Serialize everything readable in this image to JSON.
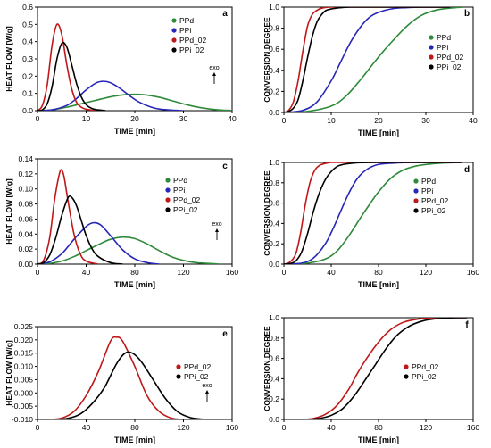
{
  "colors": {
    "PPd": "#2e8b3a",
    "PPi": "#2626b8",
    "PPd_02": "#c01818",
    "PPi_02": "#000000"
  },
  "chart_data": [
    {
      "panel_label": "a",
      "type": "line",
      "xlabel": "TIME [min]",
      "ylabel": "HEAT FLOW [W/g]",
      "xlim": [
        0,
        40
      ],
      "ylim": [
        0,
        0.6
      ],
      "xticks": [
        "0",
        "10",
        "20",
        "30",
        "40"
      ],
      "yticks": [
        "0.0",
        "0.1",
        "0.2",
        "0.3",
        "0.4",
        "0.5",
        "0.6"
      ],
      "legend": [
        "PPd",
        "PPi",
        "PPd_02",
        "PPi_02"
      ],
      "legend_position": "top-right",
      "annotation": "exo",
      "series": [
        {
          "name": "PPd",
          "x": [
            0,
            3,
            6,
            9,
            12,
            15,
            18,
            20,
            22,
            25,
            28,
            31,
            34,
            37,
            40
          ],
          "y": [
            0,
            0.005,
            0.02,
            0.04,
            0.06,
            0.08,
            0.093,
            0.095,
            0.092,
            0.078,
            0.055,
            0.032,
            0.015,
            0.005,
            0.001
          ]
        },
        {
          "name": "PPi",
          "x": [
            0,
            3,
            6,
            8,
            10,
            12,
            13.5,
            15,
            17,
            19,
            21,
            24,
            27,
            30
          ],
          "y": [
            0,
            0.005,
            0.03,
            0.07,
            0.12,
            0.16,
            0.17,
            0.162,
            0.128,
            0.085,
            0.048,
            0.015,
            0.004,
            0
          ]
        },
        {
          "name": "PPd_02",
          "x": [
            0,
            1,
            2,
            3,
            4,
            5,
            6,
            7,
            8,
            9,
            10,
            12
          ],
          "y": [
            0,
            0.03,
            0.15,
            0.38,
            0.5,
            0.44,
            0.27,
            0.13,
            0.05,
            0.02,
            0.008,
            0
          ]
        },
        {
          "name": "PPi_02",
          "x": [
            0,
            1,
            2,
            3,
            4,
            5,
            6,
            7,
            8,
            9,
            10,
            11,
            12,
            14
          ],
          "y": [
            0,
            0.005,
            0.04,
            0.14,
            0.3,
            0.39,
            0.37,
            0.27,
            0.16,
            0.08,
            0.035,
            0.015,
            0.006,
            0
          ]
        }
      ]
    },
    {
      "panel_label": "b",
      "type": "line",
      "xlabel": "TIME [min]",
      "ylabel": "CONVERSION DEGREE",
      "xlim": [
        0,
        40
      ],
      "ylim": [
        0,
        1.0
      ],
      "xticks": [
        "0",
        "10",
        "20",
        "30",
        "40"
      ],
      "yticks": [
        "0.0",
        "0.2",
        "0.4",
        "0.6",
        "0.8",
        "1.0"
      ],
      "legend": [
        "PPd",
        "PPi",
        "PPd_02",
        "PPi_02"
      ],
      "legend_position": "right",
      "series": [
        {
          "name": "PPd",
          "x": [
            0,
            5,
            10,
            13,
            16,
            19,
            21,
            23,
            26,
            29,
            32,
            35,
            38
          ],
          "y": [
            0,
            0.01,
            0.06,
            0.15,
            0.3,
            0.47,
            0.58,
            0.68,
            0.82,
            0.92,
            0.97,
            0.99,
            1.0
          ]
        },
        {
          "name": "PPi",
          "x": [
            0,
            4,
            7,
            10,
            12,
            14,
            16,
            18,
            20,
            23,
            26,
            30,
            35
          ],
          "y": [
            0,
            0.02,
            0.1,
            0.3,
            0.48,
            0.66,
            0.8,
            0.9,
            0.95,
            0.985,
            0.995,
            1.0,
            1.0
          ]
        },
        {
          "name": "PPd_02",
          "x": [
            0,
            1,
            2,
            3,
            4,
            5,
            6,
            7,
            8,
            10,
            15,
            20,
            35
          ],
          "y": [
            0,
            0.02,
            0.1,
            0.3,
            0.58,
            0.82,
            0.93,
            0.97,
            0.99,
            1.0,
            1.0,
            1.0,
            1.0
          ]
        },
        {
          "name": "PPi_02",
          "x": [
            0,
            1,
            2,
            3,
            4,
            5,
            6,
            7,
            8,
            9,
            11,
            14,
            20,
            35
          ],
          "y": [
            0,
            0.01,
            0.04,
            0.12,
            0.3,
            0.52,
            0.72,
            0.86,
            0.93,
            0.97,
            0.99,
            1.0,
            1.0,
            1.0
          ]
        }
      ]
    },
    {
      "panel_label": "c",
      "type": "line",
      "xlabel": "TIME [min]",
      "ylabel": "HEAT FLOW [W/g]",
      "xlim": [
        0,
        160
      ],
      "ylim": [
        0,
        0.14
      ],
      "xticks": [
        "0",
        "40",
        "80",
        "120",
        "160"
      ],
      "yticks": [
        "0.00",
        "0.02",
        "0.04",
        "0.06",
        "0.08",
        "0.10",
        "0.12",
        "0.14"
      ],
      "legend": [
        "PPd",
        "PPi",
        "PPd_02",
        "PPi_02"
      ],
      "legend_position": "top-right",
      "annotation": "exo",
      "series": [
        {
          "name": "PPd",
          "x": [
            0,
            10,
            20,
            30,
            40,
            50,
            60,
            70,
            80,
            90,
            100,
            110,
            120,
            130,
            140,
            150
          ],
          "y": [
            0,
            0.001,
            0.004,
            0.01,
            0.018,
            0.026,
            0.033,
            0.036,
            0.034,
            0.027,
            0.018,
            0.01,
            0.005,
            0.002,
            0.001,
            0
          ]
        },
        {
          "name": "PPi",
          "x": [
            0,
            10,
            20,
            30,
            40,
            46,
            52,
            60,
            70,
            80,
            90,
            100
          ],
          "y": [
            0,
            0.003,
            0.014,
            0.033,
            0.05,
            0.055,
            0.052,
            0.038,
            0.019,
            0.007,
            0.002,
            0
          ]
        },
        {
          "name": "PPd_02",
          "x": [
            0,
            5,
            10,
            14,
            18,
            20,
            22,
            25,
            30,
            35,
            40,
            50
          ],
          "y": [
            0,
            0.005,
            0.035,
            0.085,
            0.12,
            0.125,
            0.115,
            0.085,
            0.04,
            0.014,
            0.004,
            0
          ]
        },
        {
          "name": "PPi_02",
          "x": [
            0,
            5,
            10,
            15,
            20,
            25,
            28,
            32,
            36,
            40,
            45,
            50,
            60,
            70
          ],
          "y": [
            0,
            0.002,
            0.012,
            0.035,
            0.065,
            0.088,
            0.089,
            0.078,
            0.058,
            0.038,
            0.02,
            0.01,
            0.002,
            0
          ]
        }
      ]
    },
    {
      "panel_label": "d",
      "type": "line",
      "xlabel": "TIME [min]",
      "ylabel": "CONVERSION DEGREE",
      "xlim": [
        0,
        160
      ],
      "ylim": [
        0,
        1.0
      ],
      "xticks": [
        "0",
        "40",
        "80",
        "120",
        "160"
      ],
      "yticks": [
        "0.0",
        "0.2",
        "0.4",
        "0.6",
        "0.8",
        "1.0"
      ],
      "legend": [
        "PPd",
        "PPi",
        "PPd_02",
        "PPi_02"
      ],
      "legend_position": "right",
      "series": [
        {
          "name": "PPd",
          "x": [
            0,
            20,
            35,
            45,
            55,
            65,
            72,
            80,
            90,
            100,
            110,
            120,
            135,
            150
          ],
          "y": [
            0,
            0.01,
            0.05,
            0.13,
            0.28,
            0.46,
            0.58,
            0.71,
            0.84,
            0.92,
            0.96,
            0.98,
            0.995,
            1.0
          ]
        },
        {
          "name": "PPi",
          "x": [
            0,
            15,
            25,
            35,
            42,
            48,
            55,
            62,
            70,
            80,
            95,
            110,
            150
          ],
          "y": [
            0,
            0.01,
            0.06,
            0.2,
            0.36,
            0.52,
            0.7,
            0.84,
            0.93,
            0.98,
            0.995,
            1.0,
            1.0
          ]
        },
        {
          "name": "PPd_02",
          "x": [
            0,
            5,
            10,
            14,
            18,
            22,
            26,
            30,
            35,
            40,
            50,
            80,
            150
          ],
          "y": [
            0,
            0.02,
            0.1,
            0.3,
            0.58,
            0.8,
            0.92,
            0.97,
            0.99,
            1.0,
            1.0,
            1.0,
            1.0
          ]
        },
        {
          "name": "PPi_02",
          "x": [
            0,
            5,
            10,
            15,
            20,
            25,
            30,
            35,
            40,
            45,
            50,
            60,
            80,
            150
          ],
          "y": [
            0,
            0.005,
            0.03,
            0.12,
            0.3,
            0.52,
            0.7,
            0.83,
            0.91,
            0.96,
            0.98,
            0.995,
            1.0,
            1.0
          ]
        }
      ]
    },
    {
      "panel_label": "e",
      "type": "line",
      "xlabel": "TIME [min]",
      "ylabel": "HEAT FLOW [W/g]",
      "xlim": [
        0,
        160
      ],
      "ylim": [
        -0.01,
        0.025
      ],
      "xticks": [
        "0",
        "40",
        "80",
        "120",
        "160"
      ],
      "yticks": [
        "-0.010",
        "-0.005",
        "0.000",
        "0.005",
        "0.010",
        "0.015",
        "0.020",
        "0.025"
      ],
      "legend": [
        "PPd_02",
        "PPi_02"
      ],
      "legend_position": "right",
      "annotation": "exo",
      "series": [
        {
          "name": "PPd_02",
          "x": [
            10,
            20,
            30,
            40,
            50,
            60,
            65,
            70,
            80,
            90,
            100,
            110,
            120,
            125
          ],
          "y": [
            -0.01,
            -0.0095,
            -0.007,
            -0.001,
            0.008,
            0.0195,
            0.021,
            0.0195,
            0.01,
            -0.001,
            -0.007,
            -0.0095,
            -0.01,
            -0.01
          ]
        },
        {
          "name": "PPi_02",
          "x": [
            15,
            25,
            35,
            45,
            55,
            65,
            72,
            78,
            85,
            95,
            105,
            115,
            125,
            135,
            145
          ],
          "y": [
            -0.01,
            -0.0096,
            -0.008,
            -0.004,
            0.002,
            0.011,
            0.015,
            0.015,
            0.012,
            0.005,
            -0.002,
            -0.007,
            -0.0092,
            -0.0099,
            -0.01
          ]
        }
      ]
    },
    {
      "panel_label": "f",
      "type": "line",
      "xlabel": "TIME [min]",
      "ylabel": "CONVERSION DEGREE",
      "xlim": [
        0,
        160
      ],
      "ylim": [
        0,
        1.0
      ],
      "xticks": [
        "0",
        "40",
        "80",
        "120",
        "160"
      ],
      "yticks": [
        "0.0",
        "0.2",
        "0.4",
        "0.6",
        "0.8",
        "1.0"
      ],
      "legend": [
        "PPd_02",
        "PPi_02"
      ],
      "legend_position": "top-right",
      "series": [
        {
          "name": "PPd_02",
          "x": [
            15,
            25,
            35,
            45,
            55,
            62,
            70,
            80,
            90,
            100,
            110,
            120,
            135,
            155
          ],
          "y": [
            0,
            0.01,
            0.05,
            0.14,
            0.3,
            0.45,
            0.6,
            0.76,
            0.88,
            0.95,
            0.98,
            0.995,
            1.0,
            1.0
          ]
        },
        {
          "name": "PPi_02",
          "x": [
            20,
            30,
            40,
            50,
            60,
            70,
            78,
            86,
            95,
            105,
            115,
            125,
            140,
            155
          ],
          "y": [
            0,
            0.01,
            0.04,
            0.11,
            0.24,
            0.41,
            0.55,
            0.69,
            0.82,
            0.91,
            0.96,
            0.985,
            0.998,
            1.0
          ]
        }
      ]
    }
  ]
}
